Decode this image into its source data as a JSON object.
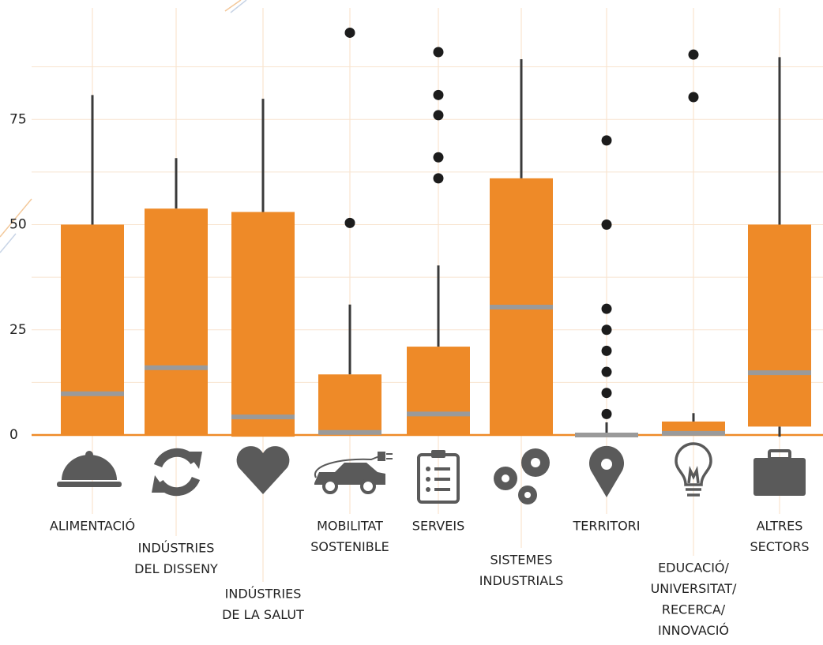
{
  "chart_data": {
    "type": "box",
    "categories": [
      [
        "ALIMENTACIÓ"
      ],
      [
        "INDÚSTRIES",
        "DEL DISSENY"
      ],
      [
        "INDÚSTRIES",
        "DE LA SALUT"
      ],
      [
        "MOBILITAT",
        "SOSTENIBLE"
      ],
      [
        "SERVEIS"
      ],
      [
        "SISTEMES",
        "INDUSTRIALS"
      ],
      [
        "TERRITORI"
      ],
      [
        "EDUCACIÓ/",
        "UNIVERSITAT/",
        "RECERCA/",
        "INNOVACIÓ"
      ],
      [
        "ALTRES",
        "SECTORS"
      ]
    ],
    "boxes": [
      {
        "whisker_low": 0,
        "q1": 0,
        "median": 9.8,
        "q3": 50,
        "whisker_high": 80.8,
        "outliers": []
      },
      {
        "whisker_low": 0,
        "q1": 0,
        "median": 16,
        "q3": 53.8,
        "whisker_high": 65.8,
        "outliers": []
      },
      {
        "whisker_low": -0.4,
        "q1": -0.4,
        "median": 4.3,
        "q3": 53,
        "whisker_high": 79.9,
        "outliers": []
      },
      {
        "whisker_low": 0,
        "q1": 0,
        "median": 0.6,
        "q3": 14.4,
        "whisker_high": 31,
        "outliers": [
          95.6,
          50.4
        ]
      },
      {
        "whisker_low": 0,
        "q1": 0,
        "median": 5,
        "q3": 21,
        "whisker_high": 40.3,
        "outliers": [
          91,
          80.8,
          76,
          66,
          61
        ]
      },
      {
        "whisker_low": 0,
        "q1": 0,
        "median": 30.4,
        "q3": 61,
        "whisker_high": 89.3,
        "outliers": []
      },
      {
        "whisker_low": 0,
        "q1": 0,
        "median": 0,
        "q3": 0,
        "whisker_high": 3,
        "outliers": [
          70,
          50,
          30,
          25,
          20,
          15,
          10,
          5
        ]
      },
      {
        "whisker_low": 0,
        "q1": 0,
        "median": 0.4,
        "q3": 3.2,
        "whisker_high": 5.2,
        "outliers": [
          90.4,
          80.3
        ]
      },
      {
        "whisker_low": -0.4,
        "q1": 2,
        "median": 14.8,
        "q3": 50,
        "whisker_high": 89.8,
        "outliers": []
      }
    ],
    "box_color": "#ee8a28",
    "median_color": "#9a9a9a",
    "whisker_color": "#3a3a3a",
    "outlier_color": "#1c1c1c",
    "ylim": [
      0,
      100
    ],
    "yticks": [
      0,
      25,
      50,
      75
    ],
    "minor_yticks": [
      12.5,
      37.5,
      62.5,
      87.5
    ],
    "grid": true
  }
}
